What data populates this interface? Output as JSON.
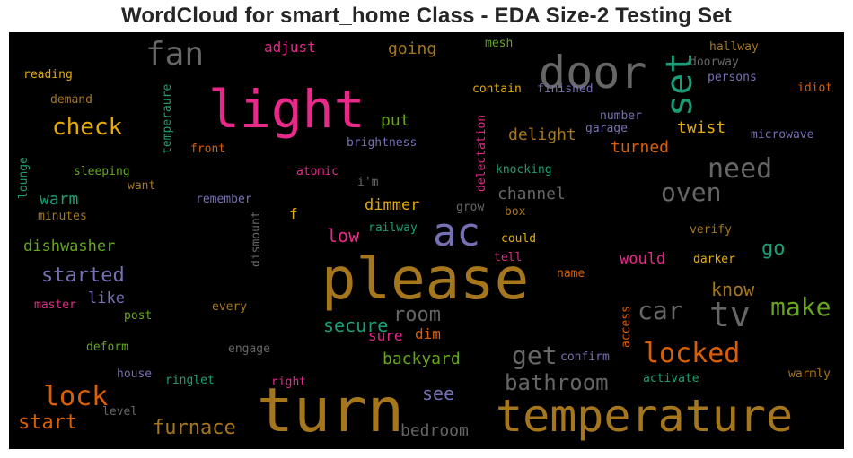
{
  "chart_data": {
    "type": "wordcloud",
    "title": "WordCloud for smart_home Class - EDA Size-2 Testing Set",
    "background": "#000000",
    "palette": [
      "#1b9e77",
      "#d95f02",
      "#7570b3",
      "#e7298a",
      "#66a61e",
      "#e6ab02",
      "#a6761d",
      "#666666"
    ],
    "words": [
      {
        "text": "turn",
        "weight": 1.0,
        "color": "#a6761d"
      },
      {
        "text": "please",
        "weight": 0.96,
        "color": "#a6761d"
      },
      {
        "text": "light",
        "weight": 0.9,
        "color": "#e7298a"
      },
      {
        "text": "temperature",
        "weight": 0.78,
        "color": "#a6761d"
      },
      {
        "text": "door",
        "weight": 0.8,
        "color": "#666666"
      },
      {
        "text": "ac",
        "weight": 0.62,
        "color": "#7570b3"
      },
      {
        "text": "set",
        "weight": 0.55,
        "color": "#1b9e77"
      },
      {
        "text": "fan",
        "weight": 0.55,
        "color": "#666666"
      },
      {
        "text": "tv",
        "weight": 0.56,
        "color": "#666666"
      },
      {
        "text": "locked",
        "weight": 0.48,
        "color": "#d95f02"
      },
      {
        "text": "lock",
        "weight": 0.45,
        "color": "#d95f02"
      },
      {
        "text": "need",
        "weight": 0.45,
        "color": "#666666"
      },
      {
        "text": "make",
        "weight": 0.43,
        "color": "#66a61e"
      },
      {
        "text": "car",
        "weight": 0.42,
        "color": "#666666"
      },
      {
        "text": "oven",
        "weight": 0.42,
        "color": "#666666"
      },
      {
        "text": "get",
        "weight": 0.42,
        "color": "#666666"
      },
      {
        "text": "check",
        "weight": 0.4,
        "color": "#e6ab02"
      },
      {
        "text": "bathroom",
        "weight": 0.38,
        "color": "#666666"
      },
      {
        "text": "started",
        "weight": 0.36,
        "color": "#7570b3"
      },
      {
        "text": "furnace",
        "weight": 0.35,
        "color": "#a6761d"
      },
      {
        "text": "start",
        "weight": 0.34,
        "color": "#d95f02"
      },
      {
        "text": "room",
        "weight": 0.33,
        "color": "#666666"
      },
      {
        "text": "secure",
        "weight": 0.33,
        "color": "#1b9e77"
      },
      {
        "text": "go",
        "weight": 0.32,
        "color": "#1b9e77"
      },
      {
        "text": "know",
        "weight": 0.31,
        "color": "#a6761d"
      },
      {
        "text": "see",
        "weight": 0.3,
        "color": "#7570b3"
      },
      {
        "text": "low",
        "weight": 0.29,
        "color": "#e7298a"
      },
      {
        "text": "delight",
        "weight": 0.28,
        "color": "#a6761d"
      },
      {
        "text": "going",
        "weight": 0.28,
        "color": "#a6761d"
      },
      {
        "text": "backyard",
        "weight": 0.28,
        "color": "#66a61e"
      },
      {
        "text": "channel",
        "weight": 0.27,
        "color": "#666666"
      },
      {
        "text": "turned",
        "weight": 0.27,
        "color": "#d95f02"
      },
      {
        "text": "twist",
        "weight": 0.27,
        "color": "#e6ab02"
      },
      {
        "text": "put",
        "weight": 0.27,
        "color": "#66a61e"
      },
      {
        "text": "warm",
        "weight": 0.26,
        "color": "#1b9e77"
      },
      {
        "text": "bedroom",
        "weight": 0.26,
        "color": "#666666"
      },
      {
        "text": "dishwasher",
        "weight": 0.26,
        "color": "#66a61e"
      },
      {
        "text": "dimmer",
        "weight": 0.25,
        "color": "#e6ab02"
      },
      {
        "text": "like",
        "weight": 0.25,
        "color": "#7570b3"
      },
      {
        "text": "would",
        "weight": 0.25,
        "color": "#e7298a"
      },
      {
        "text": "sure",
        "weight": 0.24,
        "color": "#e7298a"
      },
      {
        "text": "dim",
        "weight": 0.24,
        "color": "#d95f02"
      },
      {
        "text": "f",
        "weight": 0.24,
        "color": "#e6ab02"
      },
      {
        "text": "adjust",
        "weight": 0.24,
        "color": "#e7298a"
      },
      {
        "text": "mesh",
        "weight": 0.2,
        "color": "#66a61e"
      },
      {
        "text": "hallway",
        "weight": 0.2,
        "color": "#a6761d"
      },
      {
        "text": "doorway",
        "weight": 0.2,
        "color": "#666666"
      },
      {
        "text": "persons",
        "weight": 0.2,
        "color": "#7570b3"
      },
      {
        "text": "idiot",
        "weight": 0.2,
        "color": "#d95f02"
      },
      {
        "text": "reading",
        "weight": 0.2,
        "color": "#e6ab02"
      },
      {
        "text": "demand",
        "weight": 0.2,
        "color": "#a6761d"
      },
      {
        "text": "temperaure",
        "weight": 0.18,
        "color": "#1b9e77"
      },
      {
        "text": "contain",
        "weight": 0.2,
        "color": "#e6ab02"
      },
      {
        "text": "finished",
        "weight": 0.2,
        "color": "#7570b3"
      },
      {
        "text": "number",
        "weight": 0.2,
        "color": "#7570b3"
      },
      {
        "text": "garage",
        "weight": 0.2,
        "color": "#7570b3"
      },
      {
        "text": "microwave",
        "weight": 0.2,
        "color": "#7570b3"
      },
      {
        "text": "brightness",
        "weight": 0.2,
        "color": "#7570b3"
      },
      {
        "text": "delectation",
        "weight": 0.2,
        "color": "#e7298a"
      },
      {
        "text": "front",
        "weight": 0.2,
        "color": "#d95f02"
      },
      {
        "text": "lounge",
        "weight": 0.18,
        "color": "#1b9e77"
      },
      {
        "text": "sleeping",
        "weight": 0.2,
        "color": "#66a61e"
      },
      {
        "text": "want",
        "weight": 0.2,
        "color": "#a6761d"
      },
      {
        "text": "atomic",
        "weight": 0.2,
        "color": "#e7298a"
      },
      {
        "text": "i'm",
        "weight": 0.2,
        "color": "#666666"
      },
      {
        "text": "knocking",
        "weight": 0.2,
        "color": "#1b9e77"
      },
      {
        "text": "remember",
        "weight": 0.2,
        "color": "#7570b3"
      },
      {
        "text": "minutes",
        "weight": 0.2,
        "color": "#a6761d"
      },
      {
        "text": "dismount",
        "weight": 0.18,
        "color": "#666666"
      },
      {
        "text": "grow",
        "weight": 0.2,
        "color": "#666666"
      },
      {
        "text": "box",
        "weight": 0.2,
        "color": "#a6761d"
      },
      {
        "text": "railway",
        "weight": 0.2,
        "color": "#1b9e77"
      },
      {
        "text": "could",
        "weight": 0.2,
        "color": "#e6ab02"
      },
      {
        "text": "verify",
        "weight": 0.2,
        "color": "#a6761d"
      },
      {
        "text": "tell",
        "weight": 0.2,
        "color": "#e7298a"
      },
      {
        "text": "darker",
        "weight": 0.2,
        "color": "#e6ab02"
      },
      {
        "text": "name",
        "weight": 0.2,
        "color": "#d95f02"
      },
      {
        "text": "master",
        "weight": 0.2,
        "color": "#e7298a"
      },
      {
        "text": "post",
        "weight": 0.2,
        "color": "#66a61e"
      },
      {
        "text": "every",
        "weight": 0.2,
        "color": "#a6761d"
      },
      {
        "text": "access",
        "weight": 0.18,
        "color": "#d95f02"
      },
      {
        "text": "deform",
        "weight": 0.2,
        "color": "#66a61e"
      },
      {
        "text": "engage",
        "weight": 0.2,
        "color": "#666666"
      },
      {
        "text": "confirm",
        "weight": 0.2,
        "color": "#7570b3"
      },
      {
        "text": "house",
        "weight": 0.2,
        "color": "#7570b3"
      },
      {
        "text": "ringlet",
        "weight": 0.2,
        "color": "#1b9e77"
      },
      {
        "text": "right",
        "weight": 0.2,
        "color": "#e7298a"
      },
      {
        "text": "activate",
        "weight": 0.2,
        "color": "#1b9e77"
      },
      {
        "text": "warmly",
        "weight": 0.2,
        "color": "#a6761d"
      },
      {
        "text": "level",
        "weight": 0.2,
        "color": "#666666"
      }
    ]
  }
}
